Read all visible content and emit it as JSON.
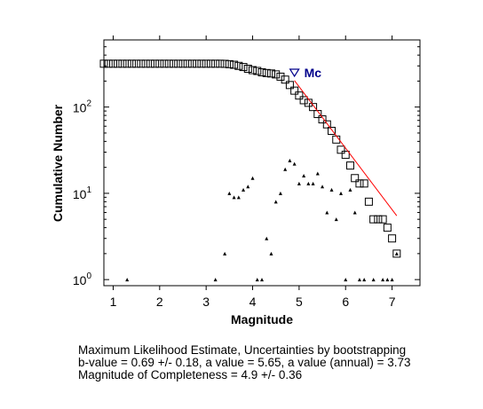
{
  "chart_data": {
    "type": "scatter",
    "title": "",
    "xlabel": "Magnitude",
    "ylabel": "Cumulative Number",
    "xlim": [
      0.8,
      7.6
    ],
    "ylim": [
      0.85,
      600
    ],
    "yscale": "log",
    "grid": false,
    "x_ticks": [
      1,
      2,
      3,
      4,
      5,
      6,
      7
    ],
    "x_tick_labels": [
      "1",
      "2",
      "3",
      "4",
      "5",
      "6",
      "7"
    ],
    "y_ticks": [
      1,
      10,
      100
    ],
    "y_tick_labels": [
      "10",
      "10",
      "10"
    ],
    "y_tick_exponents": [
      "0",
      "1",
      "2"
    ],
    "series": [
      {
        "marker": "square",
        "color": "#000000",
        "x": [
          0.8,
          0.9,
          1.0,
          1.1,
          1.2,
          1.3,
          1.4,
          1.5,
          1.6,
          1.7,
          1.8,
          1.9,
          2.0,
          2.1,
          2.2,
          2.3,
          2.4,
          2.5,
          2.6,
          2.7,
          2.8,
          2.9,
          3.0,
          3.1,
          3.2,
          3.3,
          3.4,
          3.5,
          3.6,
          3.7,
          3.8,
          3.9,
          4.0,
          4.1,
          4.2,
          4.3,
          4.4,
          4.5,
          4.6,
          4.7,
          4.8,
          4.9,
          5.0,
          5.1,
          5.2,
          5.3,
          5.4,
          5.5,
          5.6,
          5.7,
          5.8,
          5.9,
          6.0,
          6.1,
          6.2,
          6.3,
          6.4,
          6.5,
          6.6,
          6.7,
          6.8,
          6.9,
          7.0,
          7.1
        ],
        "y": [
          318,
          318,
          318,
          318,
          318,
          318,
          318,
          318,
          318,
          318,
          318,
          318,
          318,
          318,
          318,
          318,
          318,
          318,
          318,
          318,
          318,
          318,
          318,
          318,
          318,
          318,
          317,
          314,
          309,
          300,
          291,
          278,
          268,
          262,
          253,
          248,
          245,
          239,
          225,
          208,
          180,
          155,
          136,
          120,
          112,
          100,
          83,
          72,
          63,
          53,
          42,
          32,
          28,
          21,
          15,
          13,
          13,
          8,
          5,
          5,
          5,
          4,
          3,
          2
        ]
      },
      {
        "marker": "triangle",
        "color": "#000000",
        "x": [
          1.3,
          3.2,
          3.4,
          3.5,
          3.6,
          3.7,
          3.8,
          3.9,
          4.0,
          4.1,
          4.2,
          4.3,
          4.4,
          4.5,
          4.6,
          4.7,
          4.8,
          4.9,
          5.0,
          5.1,
          5.2,
          5.3,
          5.4,
          5.5,
          5.6,
          5.7,
          5.8,
          5.9,
          6.0,
          6.1,
          6.2,
          6.3,
          6.4,
          6.6,
          6.8,
          6.9,
          7.0,
          7.1
        ],
        "y": [
          1,
          1,
          2,
          10,
          9,
          9,
          11,
          12,
          15,
          1,
          1,
          3,
          2,
          8,
          10,
          19,
          24,
          22,
          13,
          16,
          13,
          13,
          17,
          12,
          6,
          11,
          5,
          10,
          1,
          11,
          6,
          1,
          1,
          1,
          1,
          1,
          1,
          2
        ]
      },
      {
        "marker": "line",
        "color": "#ff0000",
        "x": [
          4.9,
          7.1
        ],
        "y": [
          203,
          5.5
        ]
      }
    ],
    "annotations": [
      {
        "text": "Mc",
        "marker": "triangle-down",
        "x": 4.9,
        "y": 250,
        "color": "#00008b"
      }
    ]
  },
  "caption": {
    "line1": "Maximum Likelihood Estimate, Uncertainties by bootstrapping",
    "line2": "b-value = 0.69 +/- 0.18,  a value = 5.65,  a value (annual) = 3.73",
    "line3": "Magnitude of Completeness = 4.9 +/- 0.36"
  }
}
